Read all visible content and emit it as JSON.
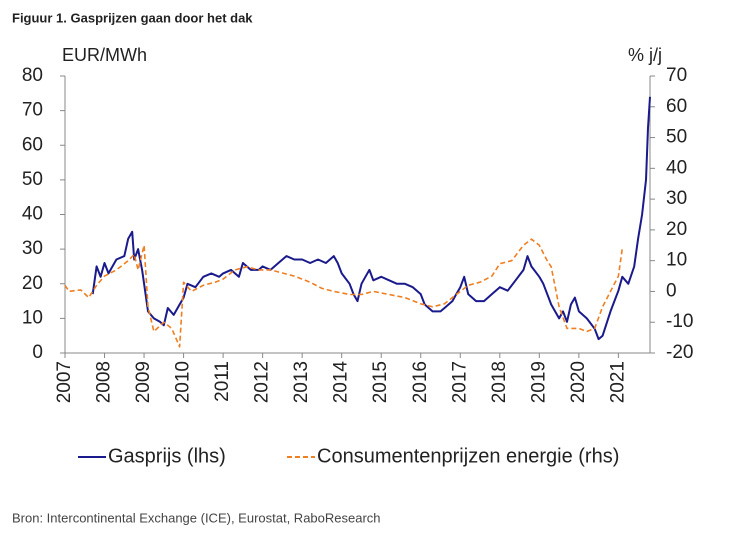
{
  "chart_data": {
    "type": "line",
    "title": "Figuur 1. Gasprijzen gaan door het dak",
    "y_label": "EUR/MWh",
    "y2_label": "% j/j",
    "source": "Bron: Intercontinental Exchange (ICE), Eurostat, RaboResearch",
    "xlim": [
      2007,
      2021.8
    ],
    "xticks": [
      2007,
      2008,
      2009,
      2010,
      2011,
      2012,
      2013,
      2014,
      2015,
      2016,
      2017,
      2018,
      2019,
      2020,
      2021
    ],
    "ylim": [
      0,
      80
    ],
    "yticks": [
      0,
      10,
      20,
      30,
      40,
      50,
      60,
      70,
      80
    ],
    "y2lim": [
      -20,
      70
    ],
    "y2ticks": [
      -20,
      -10,
      0,
      10,
      20,
      30,
      40,
      50,
      60,
      70
    ],
    "series": [
      {
        "name": "Gasprijs (lhs)",
        "color": "#1a1a8c",
        "axis": "y",
        "x": [
          2007.7,
          2007.8,
          2007.9,
          2008.0,
          2008.1,
          2008.3,
          2008.5,
          2008.6,
          2008.7,
          2008.75,
          2008.85,
          2008.95,
          2009.0,
          2009.1,
          2009.25,
          2009.4,
          2009.5,
          2009.6,
          2009.75,
          2009.9,
          2010.0,
          2010.1,
          2010.3,
          2010.5,
          2010.7,
          2010.9,
          2011.0,
          2011.2,
          2011.4,
          2011.5,
          2011.7,
          2011.9,
          2012.0,
          2012.2,
          2012.4,
          2012.6,
          2012.8,
          2013.0,
          2013.2,
          2013.4,
          2013.6,
          2013.8,
          2013.9,
          2014.0,
          2014.2,
          2014.3,
          2014.4,
          2014.5,
          2014.6,
          2014.7,
          2014.8,
          2015.0,
          2015.2,
          2015.4,
          2015.6,
          2015.8,
          2016.0,
          2016.1,
          2016.3,
          2016.5,
          2016.6,
          2016.8,
          2016.9,
          2017.0,
          2017.1,
          2017.2,
          2017.4,
          2017.6,
          2017.8,
          2018.0,
          2018.2,
          2018.4,
          2018.6,
          2018.7,
          2018.8,
          2019.0,
          2019.1,
          2019.3,
          2019.5,
          2019.6,
          2019.7,
          2019.8,
          2019.9,
          2020.0,
          2020.2,
          2020.4,
          2020.5,
          2020.6,
          2020.8,
          2020.9,
          2021.0,
          2021.1,
          2021.25,
          2021.4,
          2021.5,
          2021.6,
          2021.7,
          2021.75,
          2021.8
        ],
        "values": [
          17,
          25,
          22,
          26,
          23,
          27,
          28,
          33,
          35,
          27,
          30,
          24,
          20,
          12,
          10,
          9,
          8,
          13,
          11,
          14,
          16,
          20,
          19,
          22,
          23,
          22,
          23,
          24,
          22,
          26,
          24,
          24,
          25,
          24,
          26,
          28,
          27,
          27,
          26,
          27,
          26,
          28,
          26,
          23,
          20,
          17,
          15,
          20,
          22,
          24,
          21,
          22,
          21,
          20,
          20,
          19,
          17,
          14,
          12,
          12,
          13,
          15,
          17,
          19,
          22,
          17,
          15,
          15,
          17,
          19,
          18,
          21,
          24,
          28,
          25,
          22,
          20,
          14,
          10,
          12,
          9,
          14,
          16,
          12,
          10,
          7,
          4,
          5,
          12,
          15,
          18,
          22,
          20,
          25,
          33,
          40,
          50,
          65,
          74
        ]
      },
      {
        "name": "Consumentenprijzen energie (rhs)",
        "color": "#f07f22",
        "axis": "y2",
        "dash": true,
        "x": [
          2007.0,
          2007.1,
          2007.4,
          2007.6,
          2007.8,
          2008.0,
          2008.3,
          2008.6,
          2008.75,
          2008.85,
          2009.0,
          2009.1,
          2009.25,
          2009.5,
          2009.7,
          2009.9,
          2010.0,
          2010.2,
          2010.5,
          2010.8,
          2011.0,
          2011.3,
          2011.6,
          2011.9,
          2012.2,
          2012.5,
          2012.8,
          2013.2,
          2013.5,
          2013.8,
          2014.2,
          2014.5,
          2014.8,
          2015.2,
          2015.6,
          2016.0,
          2016.3,
          2016.6,
          2016.9,
          2017.2,
          2017.5,
          2017.8,
          2018.0,
          2018.3,
          2018.6,
          2018.8,
          2019.0,
          2019.2,
          2019.3,
          2019.5,
          2019.7,
          2020.0,
          2020.2,
          2020.4,
          2020.6,
          2020.8,
          2021.0,
          2021.1
        ],
        "values": [
          2,
          0,
          0.5,
          -2,
          2,
          5,
          7,
          10,
          12,
          7,
          15,
          -5,
          -13,
          -10,
          -12,
          -18,
          3,
          0,
          2,
          3,
          4,
          7,
          8,
          7,
          7,
          6,
          5,
          3,
          1,
          0,
          -1,
          -1,
          0,
          -1,
          -2,
          -4,
          -5,
          -4,
          -1,
          2,
          3,
          5,
          9,
          10,
          15,
          17,
          15,
          10,
          8,
          -5,
          -12,
          -12,
          -13,
          -12,
          -5,
          0,
          5,
          14
        ]
      }
    ]
  }
}
